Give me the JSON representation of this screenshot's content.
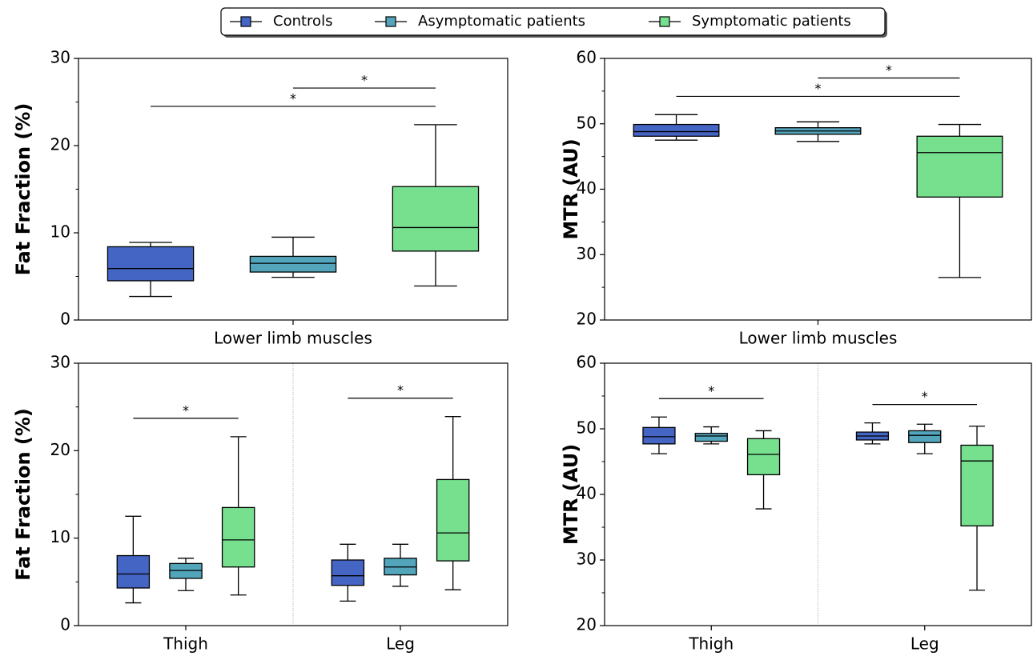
{
  "chart_data": [
    {
      "type": "box",
      "ylabel": "Fat Fraction (%)",
      "categories": [
        "Lower limb muscles"
      ],
      "ylim": [
        0,
        30
      ],
      "yticks": [
        0,
        10,
        20,
        30
      ],
      "yminorticks": [
        5,
        15,
        25
      ],
      "series": [
        {
          "name": "Controls",
          "color": "#4565c4",
          "values": [
            {
              "whislo": 2.7,
              "q1": 4.5,
              "med": 5.9,
              "q3": 8.4,
              "whishi": 8.9
            }
          ]
        },
        {
          "name": "Asymptomatic patients",
          "color": "#52a5ba",
          "values": [
            {
              "whislo": 4.9,
              "q1": 5.5,
              "med": 6.5,
              "q3": 7.3,
              "whishi": 9.5
            }
          ]
        },
        {
          "name": "Symptomatic patients",
          "color": "#77e08f",
          "values": [
            {
              "whislo": 3.9,
              "q1": 7.9,
              "med": 10.6,
              "q3": 15.3,
              "whishi": 22.4
            }
          ]
        }
      ],
      "significance": [
        {
          "label": "*",
          "category": 0,
          "groups": [
            0,
            2
          ]
        },
        {
          "label": "*",
          "category": 0,
          "groups": [
            1,
            2
          ]
        }
      ]
    },
    {
      "type": "box",
      "ylabel": "MTR (AU)",
      "categories": [
        "Lower limb muscles"
      ],
      "ylim": [
        20,
        60
      ],
      "yticks": [
        20,
        30,
        40,
        50,
        60
      ],
      "yminorticks": [
        25,
        35,
        45,
        55
      ],
      "series": [
        {
          "name": "Controls",
          "color": "#4565c4",
          "values": [
            {
              "whislo": 47.5,
              "q1": 48.1,
              "med": 48.8,
              "q3": 49.9,
              "whishi": 51.4
            }
          ]
        },
        {
          "name": "Asymptomatic patients",
          "color": "#52a5ba",
          "values": [
            {
              "whislo": 47.3,
              "q1": 48.4,
              "med": 48.9,
              "q3": 49.4,
              "whishi": 50.3
            }
          ]
        },
        {
          "name": "Symptomatic patients",
          "color": "#77e08f",
          "values": [
            {
              "whislo": 26.5,
              "q1": 38.8,
              "med": 45.6,
              "q3": 48.1,
              "whishi": 49.9
            }
          ]
        }
      ],
      "significance": [
        {
          "label": "*",
          "category": 0,
          "groups": [
            0,
            2
          ]
        },
        {
          "label": "*",
          "category": 0,
          "groups": [
            1,
            2
          ]
        }
      ]
    },
    {
      "type": "box",
      "ylabel": "Fat Fraction (%)",
      "categories": [
        "Thigh",
        "Leg"
      ],
      "ylim": [
        0,
        30
      ],
      "yticks": [
        0,
        10,
        20,
        30
      ],
      "yminorticks": [
        5,
        15,
        25
      ],
      "series": [
        {
          "name": "Controls",
          "color": "#4565c4",
          "values": [
            {
              "whislo": 2.6,
              "q1": 4.3,
              "med": 5.9,
              "q3": 8.0,
              "whishi": 12.5
            },
            {
              "whislo": 2.8,
              "q1": 4.6,
              "med": 5.7,
              "q3": 7.5,
              "whishi": 9.3
            }
          ]
        },
        {
          "name": "Asymptomatic patients",
          "color": "#52a5ba",
          "values": [
            {
              "whislo": 4.0,
              "q1": 5.4,
              "med": 6.3,
              "q3": 7.1,
              "whishi": 7.7
            },
            {
              "whislo": 4.5,
              "q1": 5.8,
              "med": 6.7,
              "q3": 7.7,
              "whishi": 9.3
            }
          ]
        },
        {
          "name": "Symptomatic patients",
          "color": "#77e08f",
          "values": [
            {
              "whislo": 3.5,
              "q1": 6.7,
              "med": 9.8,
              "q3": 13.5,
              "whishi": 21.6
            },
            {
              "whislo": 4.1,
              "q1": 7.4,
              "med": 10.6,
              "q3": 16.7,
              "whishi": 23.9
            }
          ]
        }
      ],
      "significance": [
        {
          "label": "*",
          "category": 0,
          "groups": [
            0,
            2
          ]
        },
        {
          "label": "*",
          "category": 1,
          "groups": [
            0,
            2
          ]
        }
      ]
    },
    {
      "type": "box",
      "ylabel": "MTR (AU)",
      "categories": [
        "Thigh",
        "Leg"
      ],
      "ylim": [
        20,
        60
      ],
      "yticks": [
        20,
        30,
        40,
        50,
        60
      ],
      "yminorticks": [
        25,
        35,
        45,
        55
      ],
      "series": [
        {
          "name": "Controls",
          "color": "#4565c4",
          "values": [
            {
              "whislo": 46.2,
              "q1": 47.7,
              "med": 48.8,
              "q3": 50.2,
              "whishi": 51.8
            },
            {
              "whislo": 47.7,
              "q1": 48.3,
              "med": 48.9,
              "q3": 49.5,
              "whishi": 50.9
            }
          ]
        },
        {
          "name": "Asymptomatic patients",
          "color": "#52a5ba",
          "values": [
            {
              "whislo": 47.7,
              "q1": 48.1,
              "med": 48.9,
              "q3": 49.3,
              "whishi": 50.3
            },
            {
              "whislo": 46.2,
              "q1": 47.9,
              "med": 49.0,
              "q3": 49.7,
              "whishi": 50.7
            }
          ]
        },
        {
          "name": "Symptomatic patients",
          "color": "#77e08f",
          "values": [
            {
              "whislo": 37.8,
              "q1": 43.0,
              "med": 46.1,
              "q3": 48.5,
              "whishi": 49.7
            },
            {
              "whislo": 25.4,
              "q1": 35.2,
              "med": 45.1,
              "q3": 47.5,
              "whishi": 50.4
            }
          ]
        }
      ],
      "significance": [
        {
          "label": "*",
          "category": 0,
          "groups": [
            0,
            2
          ]
        },
        {
          "label": "*",
          "category": 1,
          "groups": [
            0,
            2
          ]
        }
      ]
    }
  ]
}
